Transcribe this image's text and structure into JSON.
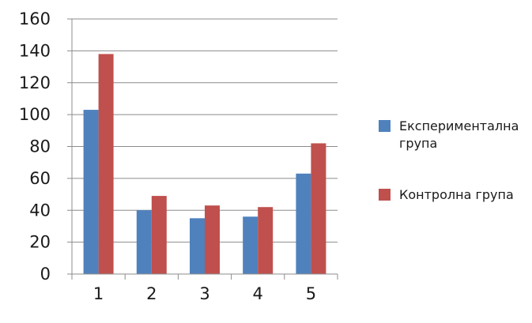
{
  "chart_data": {
    "type": "bar",
    "categories": [
      "1",
      "2",
      "3",
      "4",
      "5"
    ],
    "series": [
      {
        "name": "Експериментална група",
        "legend_lines": [
          "Експериментална",
          "група"
        ],
        "color": "#4f81bd",
        "values": [
          103,
          40,
          35,
          36,
          63
        ]
      },
      {
        "name": "Контролна група",
        "legend_lines": [
          "Контролна група"
        ],
        "color": "#c0504d",
        "values": [
          138,
          49,
          43,
          42,
          82
        ]
      }
    ],
    "ylim": [
      0,
      160
    ],
    "yticks": [
      0,
      20,
      40,
      60,
      80,
      100,
      120,
      140,
      160
    ],
    "grid": true,
    "legend_position": "right"
  }
}
